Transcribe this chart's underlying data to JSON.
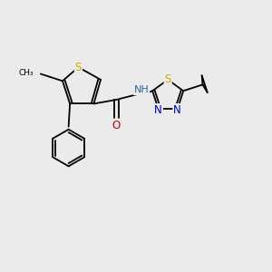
{
  "bg_color": "#ebebeb",
  "bond_color": "#000000",
  "S_color": "#ccaa00",
  "N_color": "#0000cc",
  "O_color": "#cc0000",
  "NH_color": "#336699",
  "font_size_atom": 8.5,
  "font_size_methyl": 7.0,
  "line_width": 1.3,
  "figsize": [
    3.0,
    3.0
  ],
  "dpi": 100,
  "xlim": [
    0,
    10
  ],
  "ylim": [
    0,
    10
  ]
}
